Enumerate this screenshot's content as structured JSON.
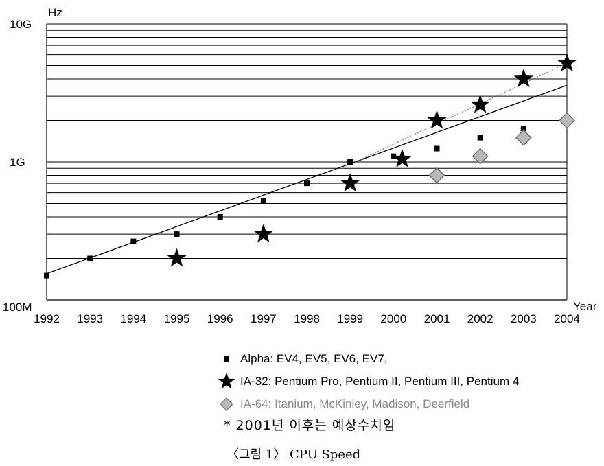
{
  "chart_data": {
    "type": "scatter",
    "yscale": "log",
    "y_unit_label": "Hz",
    "x_unit_label": "Year",
    "ylim": [
      100000000,
      10000000000
    ],
    "xlim": [
      1992,
      2004
    ],
    "y_tick_labels": [
      "100M",
      "1G",
      "10G"
    ],
    "x_tick_labels": [
      "1992",
      "1993",
      "1994",
      "1995",
      "1996",
      "1997",
      "1998",
      "1999",
      "2000",
      "2001",
      "2002",
      "2003",
      "2004"
    ],
    "grid": "horizontal",
    "colors": {
      "alpha": "#000000",
      "ia32": "#000000",
      "ia64": "#aaaaaa",
      "grid": "#000000"
    },
    "series": [
      {
        "name": "Alpha: EV4, EV5, EV6, EV7,",
        "marker": "square",
        "points": [
          {
            "x": 1992.0,
            "y": 150000000
          },
          {
            "x": 1993.0,
            "y": 200000000
          },
          {
            "x": 1994.0,
            "y": 266000000
          },
          {
            "x": 1995.0,
            "y": 300000000
          },
          {
            "x": 1996.0,
            "y": 400000000
          },
          {
            "x": 1997.0,
            "y": 525000000
          },
          {
            "x": 1998.0,
            "y": 700000000
          },
          {
            "x": 1999.0,
            "y": 1000000000
          },
          {
            "x": 2000.0,
            "y": 1100000000
          },
          {
            "x": 2001.0,
            "y": 1250000000
          },
          {
            "x": 2002.0,
            "y": 1500000000
          },
          {
            "x": 2003.0,
            "y": 1750000000
          },
          {
            "x": 2004.0,
            "y": 2100000000
          }
        ]
      },
      {
        "name": "IA-32: Pentium Pro, Pentium II, Pentium III, Pentium 4",
        "marker": "star",
        "points": [
          {
            "x": 1995.0,
            "y": 200000000
          },
          {
            "x": 1997.0,
            "y": 300000000
          },
          {
            "x": 1999.0,
            "y": 700000000
          },
          {
            "x": 2000.2,
            "y": 1050000000
          },
          {
            "x": 2001.0,
            "y": 2000000000
          },
          {
            "x": 2002.0,
            "y": 2600000000
          },
          {
            "x": 2003.0,
            "y": 4000000000
          },
          {
            "x": 2004.0,
            "y": 5200000000
          }
        ]
      },
      {
        "name": "IA-64: Itanium, McKinley, Madison, Deerfield",
        "marker": "diamond",
        "points": [
          {
            "x": 2001.0,
            "y": 800000000
          },
          {
            "x": 2002.0,
            "y": 1100000000
          },
          {
            "x": 2003.0,
            "y": 1500000000
          },
          {
            "x": 2004.0,
            "y": 2000000000
          }
        ]
      }
    ],
    "trend_lines": [
      {
        "style": "solid",
        "from": {
          "x": 1992.0,
          "y": 155000000
        },
        "to": {
          "x": 2004.0,
          "y": 3600000000
        }
      },
      {
        "style": "dotted",
        "from": {
          "x": 1999.0,
          "y": 960000000
        },
        "to": {
          "x": 2004.0,
          "y": 5200000000
        }
      }
    ]
  },
  "legend": {
    "alpha": "Alpha: EV4, EV5, EV6, EV7,",
    "ia32": "IA-32: Pentium Pro, Pentium II, Pentium III, Pentium 4",
    "ia64": "IA-64: Itanium, McKinley, Madison, Deerfield"
  },
  "note": "* 2001년 이후는 예상수치임",
  "caption": "〈그림 1〉 CPU Speed"
}
